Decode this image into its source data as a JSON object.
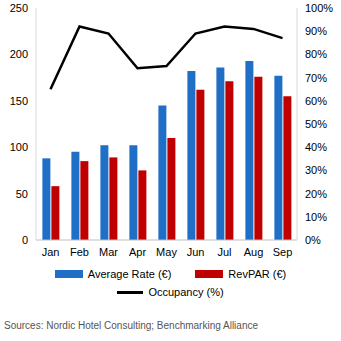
{
  "chart_data": {
    "type": "bar",
    "categories": [
      "Jan",
      "Feb",
      "Mar",
      "Apr",
      "May",
      "Jun",
      "Jul",
      "Aug",
      "Sep"
    ],
    "series": [
      {
        "name": "Average Rate (€)",
        "type": "bar",
        "color": "#1f6fc6",
        "values": [
          88,
          95,
          102,
          102,
          145,
          182,
          186,
          193,
          177
        ]
      },
      {
        "name": "RevPAR (€)",
        "type": "bar",
        "color": "#c00000",
        "values": [
          58,
          85,
          89,
          75,
          110,
          162,
          171,
          176,
          155
        ]
      },
      {
        "name": "Occupancy (%)",
        "type": "line",
        "color": "#000000",
        "axis": "y2",
        "values": [
          65,
          92,
          89,
          74,
          75,
          89,
          92,
          91,
          87
        ]
      }
    ],
    "ylim": [
      0,
      250
    ],
    "yticks": [
      0,
      50,
      100,
      150,
      200,
      250
    ],
    "y2lim": [
      0,
      100
    ],
    "y2ticks": [
      {
        "value": 0,
        "label": "0%"
      },
      {
        "value": 10,
        "label": "10%"
      },
      {
        "value": 20,
        "label": "20%"
      },
      {
        "value": 30,
        "label": "30%"
      },
      {
        "value": 40,
        "label": "40%"
      },
      {
        "value": 50,
        "label": "50%"
      },
      {
        "value": 60,
        "label": "60%"
      },
      {
        "value": 70,
        "label": "70%"
      },
      {
        "value": 80,
        "label": "80%"
      },
      {
        "value": 90,
        "label": "90%"
      },
      {
        "value": 100,
        "label": "100%"
      }
    ],
    "grid": false,
    "legend": "bottom",
    "source": "Sources: Nordic Hotel Consulting; Benchmarking Alliance"
  }
}
